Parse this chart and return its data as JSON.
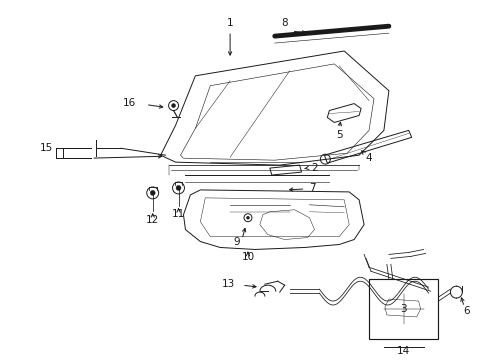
{
  "bg_color": "#ffffff",
  "line_color": "#1a1a1a",
  "figsize": [
    4.89,
    3.6
  ],
  "dpi": 100,
  "label_fontsize": 7.5,
  "lw": 0.7
}
